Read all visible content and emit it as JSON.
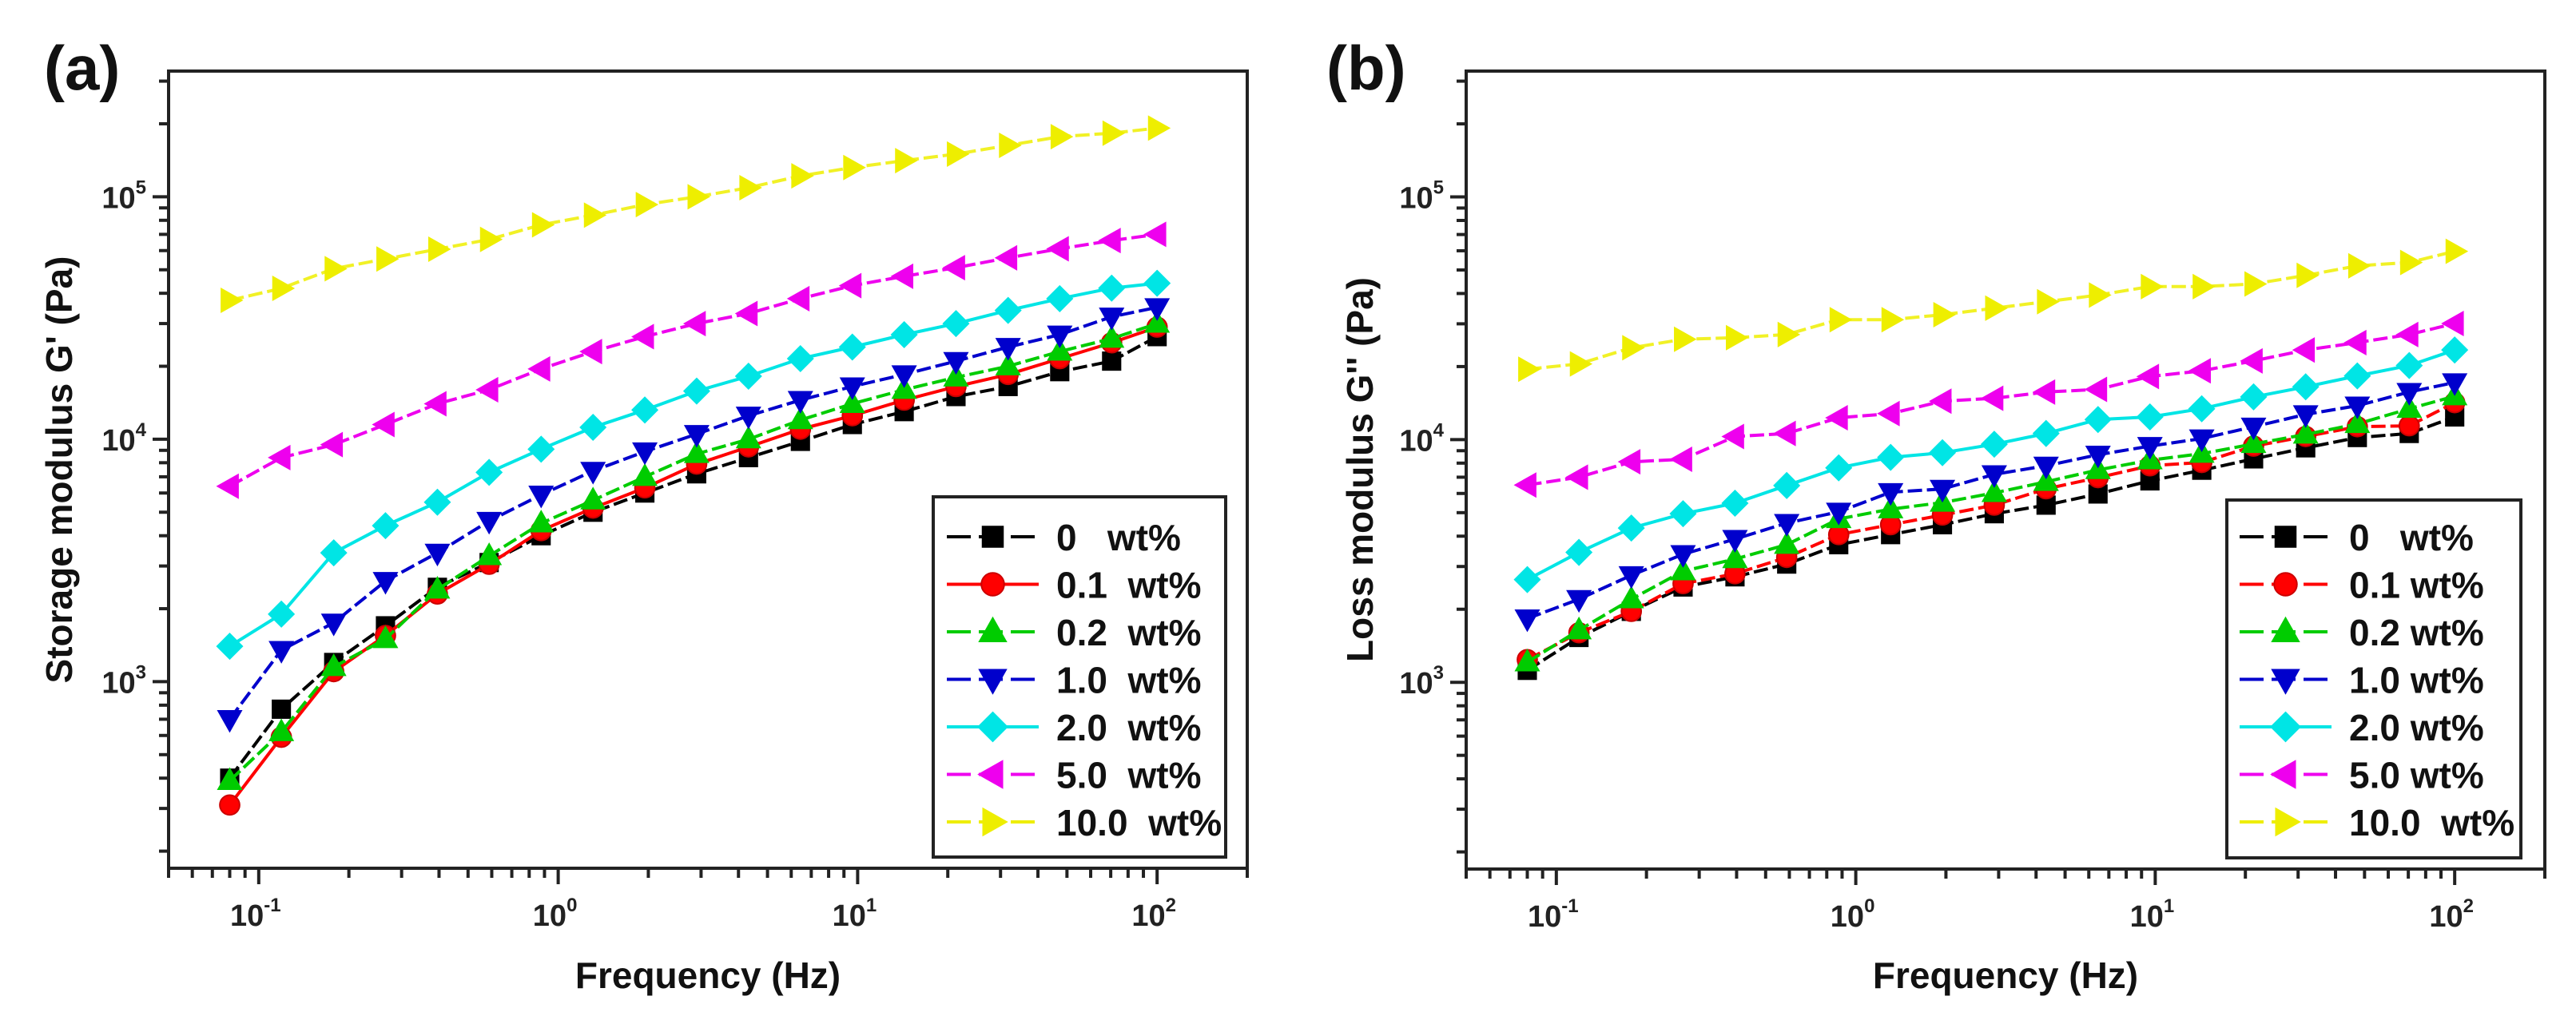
{
  "chart_data": [
    {
      "panel": "(a)",
      "type": "line",
      "xscale": "log",
      "yscale": "log",
      "title": "",
      "xlabel": "Frequency (Hz)",
      "ylabel": "Storage modulus G' (Pa)",
      "xlim": [
        0.05,
        200
      ],
      "ylim": [
        170,
        330000
      ],
      "xticks": [
        {
          "base": "10",
          "exp": "-1",
          "value": 0.1
        },
        {
          "base": "10",
          "exp": "0",
          "value": 1
        },
        {
          "base": "10",
          "exp": "1",
          "value": 10
        },
        {
          "base": "10",
          "exp": "2",
          "value": 100
        }
      ],
      "yticks": [
        {
          "base": "10",
          "exp": "3",
          "value": 1000
        },
        {
          "base": "10",
          "exp": "4",
          "value": 10000
        },
        {
          "base": "10",
          "exp": "5",
          "value": 100000
        }
      ],
      "grid": false,
      "legend_position": "bottom-right",
      "x": [
        0.08,
        0.119,
        0.178,
        0.265,
        0.395,
        0.588,
        0.877,
        1.307,
        1.947,
        2.9,
        4.32,
        6.44,
        9.6,
        14.3,
        21.3,
        31.8,
        47.3,
        70.5,
        100
      ],
      "series": [
        {
          "name": "0   wt%",
          "color": "#000000",
          "marker": "square",
          "dashed": true,
          "values": [
            400,
            770,
            1200,
            1700,
            2450,
            3100,
            4000,
            5000,
            6000,
            7200,
            8400,
            9800,
            11500,
            13000,
            15000,
            16500,
            19000,
            21000,
            26500
          ]
        },
        {
          "name": "0.1  wt%",
          "color": "#ff0000",
          "marker": "circle",
          "dashed": false,
          "values": [
            310,
            590,
            1100,
            1550,
            2300,
            3050,
            4200,
            5200,
            6300,
            7900,
            9300,
            11000,
            12500,
            14500,
            16500,
            18500,
            21500,
            25000,
            29000
          ]
        },
        {
          "name": "0.2  wt%",
          "color": "#00cc00",
          "marker": "triangle-up",
          "dashed": true,
          "values": [
            390,
            620,
            1150,
            1500,
            2400,
            3300,
            4500,
            5600,
            7000,
            8700,
            10000,
            12000,
            14000,
            16000,
            18000,
            20000,
            23000,
            26000,
            30000
          ]
        },
        {
          "name": "1.0  wt%",
          "color": "#0000cc",
          "marker": "triangle-down",
          "dashed": true,
          "values": [
            700,
            1350,
            1750,
            2600,
            3400,
            4600,
            5900,
            7400,
            8900,
            10500,
            12500,
            14500,
            16500,
            18500,
            21000,
            24000,
            27000,
            32000,
            35000
          ]
        },
        {
          "name": "2.0  wt%",
          "color": "#00e5e5",
          "marker": "diamond",
          "dashed": false,
          "values": [
            1400,
            1900,
            3400,
            4400,
            5500,
            7300,
            9100,
            11200,
            13200,
            15800,
            18200,
            21500,
            24000,
            27000,
            30000,
            34000,
            38000,
            42000,
            44000
          ]
        },
        {
          "name": "5.0  wt%",
          "color": "#ee00ee",
          "marker": "triangle-left",
          "dashed": true,
          "values": [
            6400,
            8400,
            9500,
            11500,
            14000,
            16000,
            19500,
            23000,
            26500,
            30000,
            33000,
            38000,
            43000,
            47000,
            51000,
            56000,
            61000,
            66000,
            70000
          ]
        },
        {
          "name": "10.0  wt%",
          "color": "#eeee00",
          "marker": "triangle-right",
          "dashed": true,
          "values": [
            37400,
            41900,
            50500,
            55400,
            60800,
            66700,
            76600,
            84000,
            92900,
            100000,
            109000,
            122000,
            132000,
            141000,
            150000,
            163000,
            177000,
            183000,
            192000
          ]
        }
      ]
    },
    {
      "panel": "(b)",
      "type": "line",
      "xscale": "log",
      "yscale": "log",
      "title": "",
      "xlabel": "Frequency (Hz)",
      "ylabel": "Loss modulus G'' (Pa)",
      "xlim": [
        0.05,
        200
      ],
      "ylim": [
        170,
        330000
      ],
      "xticks": [
        {
          "base": "10",
          "exp": "-1",
          "value": 0.1
        },
        {
          "base": "10",
          "exp": "0",
          "value": 1
        },
        {
          "base": "10",
          "exp": "1",
          "value": 10
        },
        {
          "base": "10",
          "exp": "2",
          "value": 100
        }
      ],
      "yticks": [
        {
          "base": "10",
          "exp": "3",
          "value": 1000
        },
        {
          "base": "10",
          "exp": "4",
          "value": 10000
        },
        {
          "base": "10",
          "exp": "5",
          "value": 100000
        }
      ],
      "grid": false,
      "legend_position": "bottom-right",
      "x": [
        0.08,
        0.119,
        0.178,
        0.265,
        0.395,
        0.588,
        0.877,
        1.307,
        1.947,
        2.9,
        4.32,
        6.44,
        9.6,
        14.3,
        21.3,
        31.8,
        47.3,
        70.5,
        100
      ],
      "series": [
        {
          "name": "0   wt%",
          "color": "#000000",
          "marker": "square",
          "dashed": true,
          "values": [
            1120,
            1530,
            1960,
            2470,
            2720,
            3070,
            3690,
            4060,
            4460,
            4950,
            5370,
            5970,
            6760,
            7480,
            8330,
            9250,
            10200,
            10600,
            12400
          ]
        },
        {
          "name": "0.1 wt%",
          "color": "#ff0000",
          "marker": "circle",
          "dashed": true,
          "values": [
            1240,
            1600,
            1960,
            2550,
            2800,
            3270,
            4060,
            4460,
            4890,
            5370,
            6270,
            6970,
            7800,
            8050,
            9400,
            10300,
            11300,
            11400,
            14200
          ]
        },
        {
          "name": "0.2 wt%",
          "color": "#00cc00",
          "marker": "triangle-up",
          "dashed": true,
          "values": [
            1210,
            1640,
            2200,
            2870,
            3220,
            3690,
            4710,
            5170,
            5500,
            6030,
            6700,
            7500,
            8230,
            8750,
            9600,
            10500,
            11600,
            13400,
            15100
          ]
        },
        {
          "name": "1.0 wt%",
          "color": "#0000cc",
          "marker": "triangle-down",
          "dashed": true,
          "values": [
            1830,
            2200,
            2760,
            3370,
            3890,
            4530,
            5040,
            6070,
            6260,
            7190,
            7800,
            8660,
            9400,
            10100,
            11300,
            12700,
            13800,
            15700,
            17200
          ]
        },
        {
          "name": "2.0 wt%",
          "color": "#00e5e5",
          "marker": "diamond",
          "dashed": false,
          "values": [
            2650,
            3430,
            4320,
            4950,
            5470,
            6470,
            7650,
            8450,
            8830,
            9570,
            10600,
            12100,
            12400,
            13400,
            15000,
            16500,
            18300,
            20200,
            23400
          ]
        },
        {
          "name": "5.0 wt%",
          "color": "#ee00ee",
          "marker": "triangle-left",
          "dashed": true,
          "values": [
            6500,
            7000,
            8100,
            8300,
            10300,
            10600,
            12300,
            12800,
            14400,
            14800,
            15700,
            16100,
            18200,
            19200,
            21100,
            23400,
            25100,
            27100,
            30100
          ]
        },
        {
          "name": "10.0  wt%",
          "color": "#eeee00",
          "marker": "triangle-right",
          "dashed": true,
          "values": [
            19500,
            20500,
            23900,
            25900,
            26300,
            27100,
            31200,
            31200,
            32700,
            34800,
            37000,
            39400,
            42700,
            42700,
            43800,
            47500,
            52000,
            53700,
            59700
          ]
        }
      ]
    }
  ]
}
